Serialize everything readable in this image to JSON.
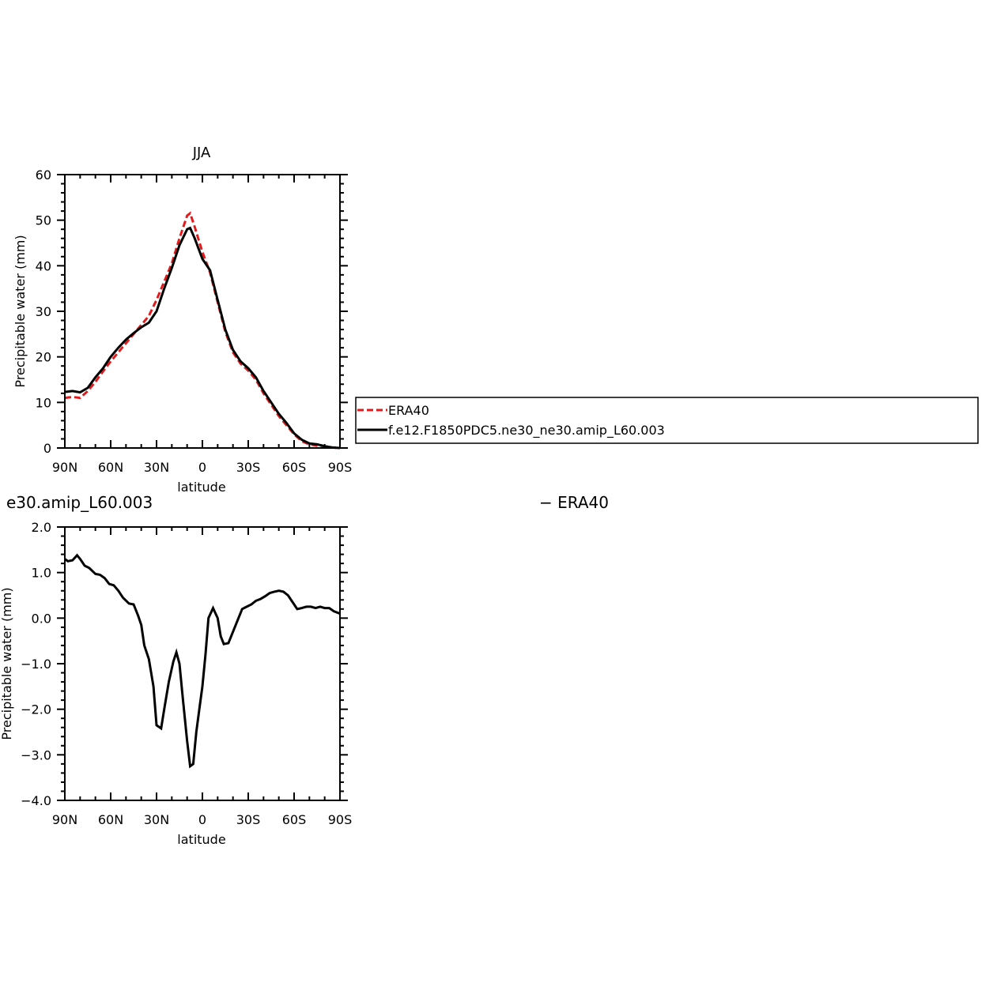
{
  "chart_data": [
    {
      "type": "line",
      "title": "JJA",
      "xlabel": "latitude",
      "ylabel": "Precipitable water (mm)",
      "xlim": [
        90,
        -90
      ],
      "ylim": [
        0,
        60
      ],
      "xticks": [
        90,
        60,
        30,
        0,
        -30,
        -60,
        -90
      ],
      "xtick_labels": [
        "90N",
        "60N",
        "30N",
        "0",
        "30S",
        "60S",
        "90S"
      ],
      "yticks": [
        0,
        10,
        20,
        30,
        40,
        50,
        60
      ],
      "ytick_labels": [
        "0",
        "10",
        "20",
        "30",
        "40",
        "50",
        "60"
      ],
      "legend_position": "right",
      "legend": [
        "ERA40",
        "f.e12.F1850PDC5.ne30_ne30.amip_L60.003"
      ],
      "series": [
        {
          "name": "ERA40",
          "color": "#e31a1c",
          "style": "dashed",
          "x": [
            90,
            85,
            80,
            75,
            70,
            65,
            60,
            55,
            50,
            45,
            40,
            35,
            30,
            25,
            20,
            15,
            10,
            8,
            5,
            0,
            -5,
            -10,
            -15,
            -20,
            -25,
            -30,
            -35,
            -40,
            -45,
            -50,
            -55,
            -60,
            -65,
            -70,
            -75,
            -80,
            -85,
            -90
          ],
          "y": [
            11.0,
            11.2,
            11.0,
            12.5,
            14.5,
            16.8,
            19.0,
            21.0,
            23.0,
            25.0,
            27.0,
            29.0,
            32.5,
            36.5,
            40.5,
            46.0,
            51.0,
            51.5,
            48.5,
            43.0,
            38.5,
            32.0,
            25.5,
            21.0,
            18.5,
            17.0,
            15.0,
            12.0,
            9.5,
            7.0,
            5.0,
            3.0,
            1.5,
            0.8,
            0.5,
            0.2,
            0.1,
            0.0
          ]
        },
        {
          "name": "f.e12.F1850PDC5.ne30_ne30.amip_L60.003",
          "color": "#000000",
          "style": "solid",
          "x": [
            90,
            85,
            80,
            75,
            70,
            65,
            60,
            55,
            50,
            45,
            40,
            35,
            30,
            25,
            20,
            15,
            10,
            8,
            5,
            0,
            -5,
            -10,
            -15,
            -20,
            -25,
            -30,
            -35,
            -40,
            -45,
            -50,
            -55,
            -60,
            -65,
            -70,
            -75,
            -80,
            -85,
            -90
          ],
          "y": [
            12.3,
            12.5,
            12.2,
            13.2,
            15.5,
            17.5,
            20.0,
            22.0,
            23.8,
            25.2,
            26.5,
            27.5,
            30.0,
            35.0,
            39.5,
            44.5,
            48.0,
            48.3,
            46.0,
            41.5,
            39.0,
            32.5,
            26.0,
            21.5,
            19.0,
            17.5,
            15.5,
            12.5,
            10.0,
            7.5,
            5.5,
            3.2,
            1.8,
            1.0,
            0.8,
            0.4,
            0.1,
            0.0
          ]
        }
      ]
    },
    {
      "type": "line",
      "title": "e30.amip_L60.003",
      "title_right": "− ERA40",
      "xlabel": "latitude",
      "ylabel": "Precipitable water (mm)",
      "xlim": [
        90,
        -90
      ],
      "ylim": [
        -4.0,
        2.0
      ],
      "xticks": [
        90,
        60,
        30,
        0,
        -30,
        -60,
        -90
      ],
      "xtick_labels": [
        "90N",
        "60N",
        "30N",
        "0",
        "30S",
        "60S",
        "90S"
      ],
      "yticks": [
        -4.0,
        -3.0,
        -2.0,
        -1.0,
        0.0,
        1.0,
        2.0
      ],
      "ytick_labels": [
        "−4.0",
        "−3.0",
        "−2.0",
        "−1.0",
        "0.0",
        "1.0",
        "2.0"
      ],
      "series": [
        {
          "color": "#000000",
          "style": "solid",
          "x": [
            90,
            88,
            85,
            82,
            80,
            77,
            74,
            70,
            67,
            64,
            61,
            58,
            55,
            52,
            48,
            45,
            42,
            40,
            38,
            35,
            32,
            30,
            27,
            25,
            22,
            19,
            17,
            15,
            13,
            10,
            8,
            6,
            4,
            2,
            0,
            -2,
            -4,
            -7,
            -10,
            -12,
            -14,
            -17,
            -20,
            -23,
            -26,
            -29,
            -32,
            -35,
            -38,
            -41,
            -44,
            -47,
            -50,
            -53,
            -56,
            -59,
            -62,
            -65,
            -68,
            -71,
            -74,
            -77,
            -80,
            -83,
            -86,
            -90
          ],
          "y": [
            1.3,
            1.25,
            1.27,
            1.38,
            1.3,
            1.15,
            1.1,
            0.97,
            0.95,
            0.88,
            0.75,
            0.72,
            0.6,
            0.45,
            0.32,
            0.3,
            0.05,
            -0.15,
            -0.6,
            -0.9,
            -1.5,
            -2.35,
            -2.42,
            -2.0,
            -1.4,
            -0.95,
            -0.75,
            -1.0,
            -1.7,
            -2.7,
            -3.25,
            -3.2,
            -2.5,
            -2.0,
            -1.5,
            -0.8,
            0.0,
            0.22,
            0.0,
            -0.4,
            -0.57,
            -0.55,
            -0.3,
            -0.05,
            0.2,
            0.25,
            0.3,
            0.38,
            0.42,
            0.48,
            0.55,
            0.58,
            0.6,
            0.58,
            0.5,
            0.35,
            0.2,
            0.22,
            0.25,
            0.25,
            0.22,
            0.25,
            0.22,
            0.22,
            0.15,
            0.1
          ]
        }
      ]
    }
  ]
}
